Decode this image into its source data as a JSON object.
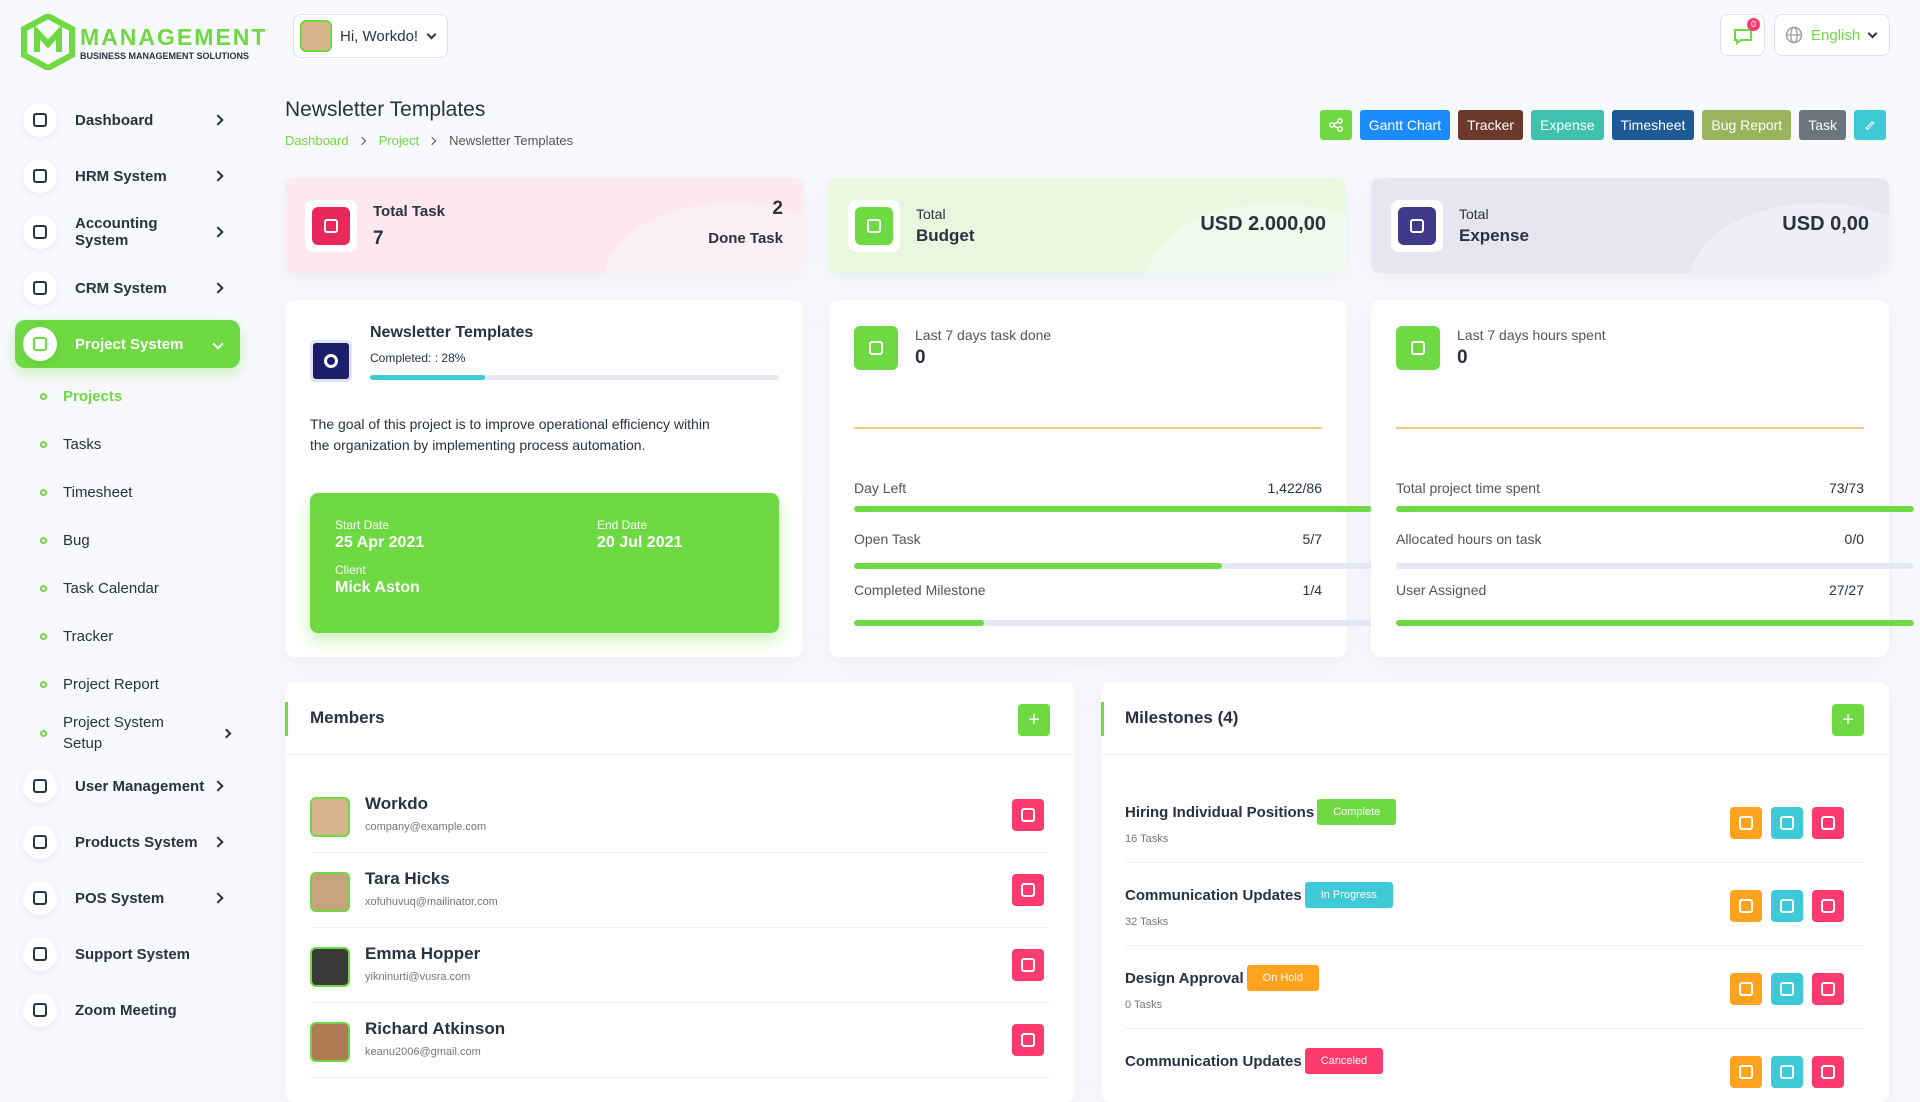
{
  "brand": {
    "name": "MANAGEMENT",
    "tagline": "BUSINESS MANAGEMENT SOLUTIONS"
  },
  "header": {
    "greeting": "Hi, Workdo!",
    "notification_count": "0",
    "language": "English"
  },
  "sidebar": {
    "items": [
      {
        "label": "Dashboard",
        "has_children": true
      },
      {
        "label": "HRM System",
        "has_children": true
      },
      {
        "label": "Accounting System",
        "has_children": true
      },
      {
        "label": "CRM System",
        "has_children": true
      },
      {
        "label": "Project System",
        "has_children": true,
        "active": true,
        "submenu": [
          {
            "label": "Projects",
            "active": true
          },
          {
            "label": "Tasks"
          },
          {
            "label": "Timesheet"
          },
          {
            "label": "Bug"
          },
          {
            "label": "Task Calendar"
          },
          {
            "label": "Tracker"
          },
          {
            "label": "Project Report"
          },
          {
            "label": "Project System Setup",
            "has_children": true
          }
        ]
      },
      {
        "label": "User Management",
        "has_children": true
      },
      {
        "label": "Products System",
        "has_children": true
      },
      {
        "label": "POS System",
        "has_children": true
      },
      {
        "label": "Support System"
      },
      {
        "label": "Zoom Meeting"
      }
    ]
  },
  "page": {
    "title": "Newsletter Templates",
    "breadcrumb": [
      "Dashboard",
      "Project",
      "Newsletter Templates"
    ],
    "actions": [
      {
        "label": "Gantt Chart",
        "color": "#1a8cff"
      },
      {
        "label": "Tracker",
        "color": "#6b3a2c"
      },
      {
        "label": "Expense",
        "color": "#3ec1ad"
      },
      {
        "label": "Timesheet",
        "color": "#1d5a96"
      },
      {
        "label": "Bug Report",
        "color": "#9cb35d"
      },
      {
        "label": "Task",
        "color": "#6c757d"
      }
    ]
  },
  "summary": [
    {
      "title": "Total Task",
      "value": "7",
      "side_value": "2",
      "side_label": "Done Task",
      "bg": "#fce8ee",
      "icon": "#e8285a"
    },
    {
      "caption": "Total",
      "title": "Budget",
      "value": "USD 2.000,00",
      "bg": "#e9f7df",
      "icon": "#6fd943"
    },
    {
      "caption": "Total",
      "title": "Expense",
      "value": "USD 0,00",
      "bg": "#e6e5f1",
      "icon": "#3f3a8a"
    }
  ],
  "project": {
    "name": "Newsletter Templates",
    "completed_label": "Completed: :",
    "progress": {
      "value": 28,
      "label": "28%"
    },
    "description": "The goal of this project is to improve operational efficiency within the organization by implementing process automation.",
    "start_label": "Start Date",
    "start": "25 Apr 2021",
    "end_label": "End Date",
    "end": "20 Jul 2021",
    "client_label": "Client",
    "client": "Mick Aston"
  },
  "task_stats": {
    "caption": "Last 7 days task done",
    "value": "0",
    "rows": [
      {
        "label": "Day Left",
        "value": "1,422/86",
        "percent": 100
      },
      {
        "label": "Open Task",
        "value": "5/7",
        "percent": 71
      },
      {
        "label": "Completed Milestone",
        "value": "1/4",
        "percent": 25
      }
    ]
  },
  "hours_stats": {
    "caption": "Last 7 days hours spent",
    "value": "0",
    "rows": [
      {
        "label": "Total project time spent",
        "value": "73/73",
        "percent": 100
      },
      {
        "label": "Allocated hours on task",
        "value": "0/0",
        "percent": 0
      },
      {
        "label": "User Assigned",
        "value": "27/27",
        "percent": 100
      }
    ]
  },
  "members": {
    "title": "Members",
    "list": [
      {
        "name": "Workdo",
        "email": "company@example.com"
      },
      {
        "name": "Tara Hicks",
        "email": "xofuhuvuq@mailinator.com"
      },
      {
        "name": "Emma Hopper",
        "email": "yikninurti@vusra.com"
      },
      {
        "name": "Richard Atkinson",
        "email": "keanu2006@gmail.com"
      }
    ]
  },
  "milestones": {
    "title": "Milestones (4)",
    "list": [
      {
        "name": "Hiring Individual Positions",
        "status": "Complete",
        "status_color": "#6fd943",
        "tasks": "16 Tasks"
      },
      {
        "name": "Communication Updates",
        "status": "In Progress",
        "status_color": "#3ec9d6",
        "tasks": "32 Tasks"
      },
      {
        "name": "Design Approval",
        "status": "On Hold",
        "status_color": "#ffa21d",
        "tasks": "0 Tasks"
      },
      {
        "name": "Communication Updates",
        "status": "Canceled",
        "status_color": "#ff3a6e"
      }
    ]
  }
}
